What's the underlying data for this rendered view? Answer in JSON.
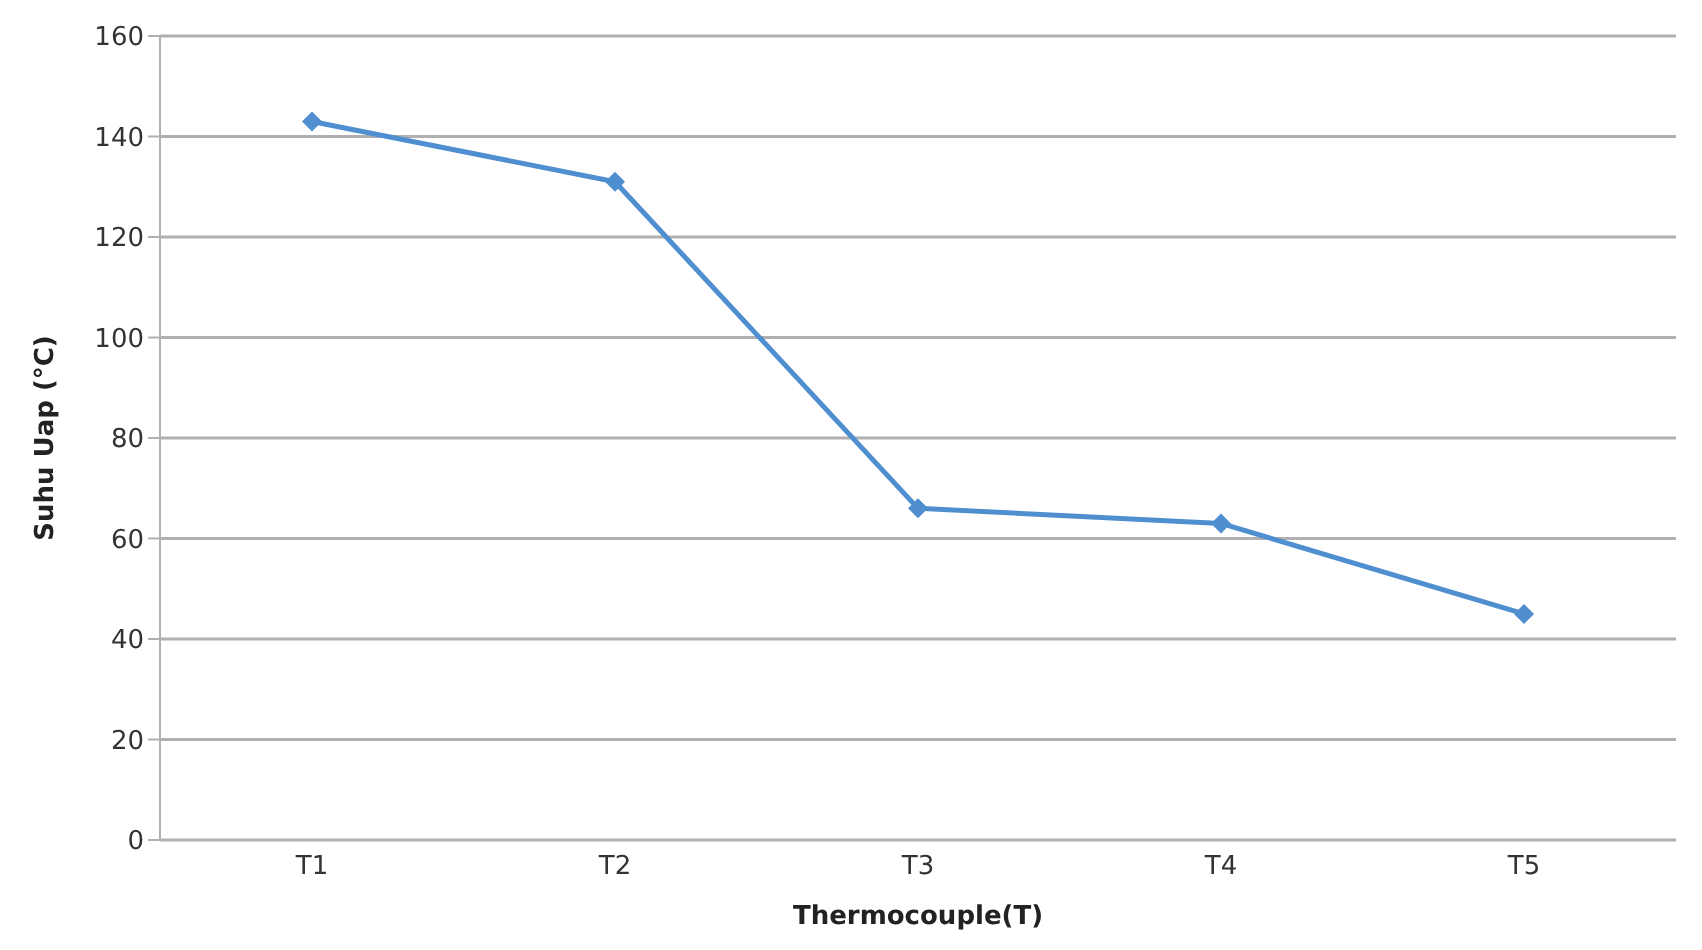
{
  "chart_data": {
    "type": "line",
    "xlabel": "Thermocouple(T)",
    "ylabel": "Suhu Uap (°C)",
    "categories": [
      "T1",
      "T2",
      "T3",
      "T4",
      "T5"
    ],
    "series": [
      {
        "color": "#4f8fd0",
        "values": [
          143,
          131,
          66,
          63,
          45
        ]
      }
    ],
    "ylim": [
      0,
      160
    ],
    "yticks": [
      0,
      20,
      40,
      60,
      80,
      100,
      120,
      140,
      160
    ],
    "grid": "y",
    "marker": "diamond",
    "line_style": "solid"
  }
}
